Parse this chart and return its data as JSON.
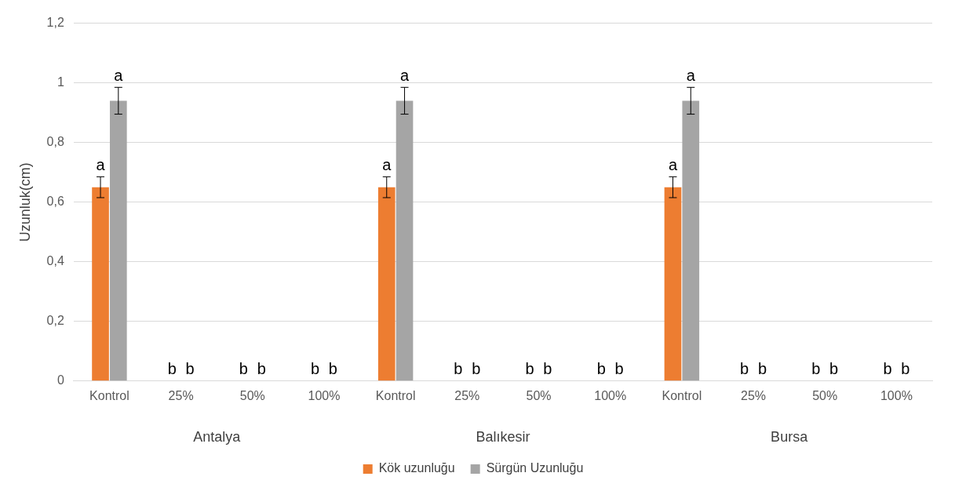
{
  "chart_data": {
    "type": "bar",
    "ylabel": "Uzunluk(cm)",
    "categories": [
      "Kontrol",
      "25%",
      "50%",
      "100%",
      "Kontrol",
      "25%",
      "50%",
      "100%",
      "Kontrol",
      "25%",
      "50%",
      "100%"
    ],
    "series": [
      {
        "name": "Kök uzunluğu",
        "color": "#ed7d31",
        "values": [
          0.65,
          0,
          0,
          0,
          0.65,
          0,
          0,
          0,
          0.65,
          0,
          0,
          0
        ],
        "errors": [
          0.035,
          null,
          null,
          null,
          0.035,
          null,
          null,
          null,
          0.035,
          null,
          null,
          null
        ],
        "value_labels": [
          "a",
          "b",
          "b",
          "b",
          "a",
          "b",
          "b",
          "b",
          "a",
          "b",
          "b",
          "b"
        ]
      },
      {
        "name": "Sürgün Uzunluğu",
        "color": "#a5a5a5",
        "values": [
          0.94,
          0,
          0,
          0,
          0.94,
          0,
          0,
          0,
          0.94,
          0,
          0,
          0
        ],
        "errors": [
          0.045,
          null,
          null,
          null,
          0.045,
          null,
          null,
          null,
          0.045,
          null,
          null,
          null
        ],
        "value_labels": [
          "a",
          "b",
          "b",
          "b",
          "a",
          "b",
          "b",
          "b",
          "a",
          "b",
          "b",
          "b"
        ]
      }
    ],
    "ylim": [
      0,
      1.2
    ],
    "yticks": [
      {
        "value": 0,
        "label": "0"
      },
      {
        "value": 0.2,
        "label": "0,2"
      },
      {
        "value": 0.4,
        "label": "0,4"
      },
      {
        "value": 0.6,
        "label": "0,6"
      },
      {
        "value": 0.8,
        "label": "0,8"
      },
      {
        "value": 1,
        "label": "1"
      },
      {
        "value": 1.2,
        "label": "1,2"
      }
    ],
    "grid": "y",
    "legend": "bottom",
    "annotations": [
      "Antalya",
      "Balıkesir",
      "Bursa"
    ]
  }
}
